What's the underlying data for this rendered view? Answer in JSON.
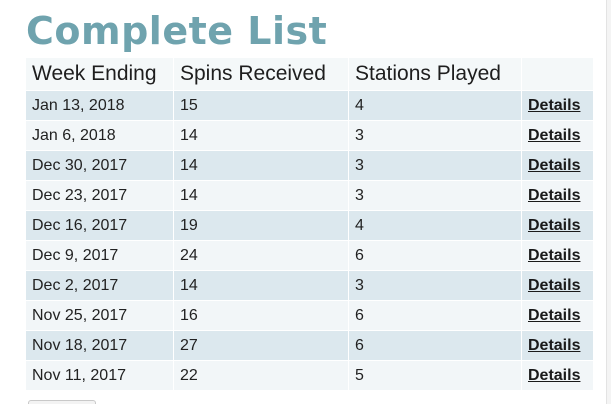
{
  "page": {
    "title": "Complete List"
  },
  "table": {
    "headers": [
      "Week Ending",
      "Spins Received",
      "Stations Played",
      ""
    ],
    "link_label": "Details",
    "rows": [
      {
        "week_ending": "Jan 13, 2018",
        "spins": "15",
        "stations": "4"
      },
      {
        "week_ending": "Jan 6, 2018",
        "spins": "14",
        "stations": "3"
      },
      {
        "week_ending": "Dec 30, 2017",
        "spins": "14",
        "stations": "3"
      },
      {
        "week_ending": "Dec 23, 2017",
        "spins": "14",
        "stations": "3"
      },
      {
        "week_ending": "Dec 16, 2017",
        "spins": "19",
        "stations": "4"
      },
      {
        "week_ending": "Dec 9, 2017",
        "spins": "24",
        "stations": "6"
      },
      {
        "week_ending": "Dec 2, 2017",
        "spins": "14",
        "stations": "3"
      },
      {
        "week_ending": "Nov 25, 2017",
        "spins": "16",
        "stations": "6"
      },
      {
        "week_ending": "Nov 18, 2017",
        "spins": "27",
        "stations": "6"
      },
      {
        "week_ending": "Nov 11, 2017",
        "spins": "22",
        "stations": "5"
      }
    ]
  },
  "colors": {
    "title": "#6fa3ae",
    "row_odd": "#dce8ee",
    "row_even": "#f2f6f8",
    "header_bg": "#f4f8f9"
  }
}
